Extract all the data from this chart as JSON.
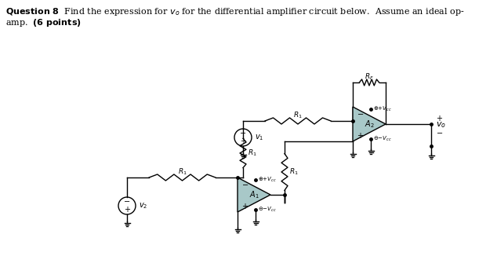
{
  "bg_color": "#ffffff",
  "op_amp_fill": "#a8c8c8",
  "text_color": "#000000",
  "figsize": [
    6.34,
    3.54
  ],
  "dpi": 100
}
